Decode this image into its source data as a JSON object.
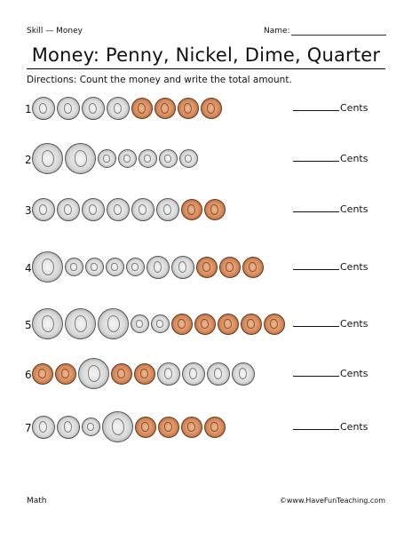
{
  "header": {
    "skill": "Skill — Money",
    "name_label": "Name:"
  },
  "title": "Money: Penny, Nickel, Dime, Quarter",
  "directions": "Directions: Count the money and write the total amount.",
  "answer_suffix": "Cents",
  "rows": [
    {
      "label": "1.",
      "coins": [
        "nickel",
        "nickel",
        "nickel",
        "nickel",
        "penny",
        "penny",
        "penny",
        "penny"
      ]
    },
    {
      "label": "2.",
      "coins": [
        "quarter",
        "quarter",
        "dime",
        "dime",
        "dime",
        "dime",
        "dime"
      ]
    },
    {
      "label": "3.",
      "coins": [
        "nickel",
        "nickel",
        "nickel",
        "nickel",
        "nickel",
        "nickel",
        "penny",
        "penny"
      ]
    },
    {
      "label": "4.",
      "coins": [
        "quarter",
        "dime",
        "dime",
        "dime",
        "dime",
        "nickel",
        "nickel",
        "penny",
        "penny",
        "penny"
      ]
    },
    {
      "label": "5.",
      "coins": [
        "quarter",
        "quarter",
        "quarter",
        "dime",
        "dime",
        "penny",
        "penny",
        "penny",
        "penny",
        "penny"
      ]
    },
    {
      "label": "6.",
      "coins": [
        "penny",
        "penny",
        "quarter",
        "penny",
        "penny",
        "nickel",
        "nickel",
        "nickel",
        "nickel"
      ]
    },
    {
      "label": "7.",
      "coins": [
        "nickel",
        "nickel",
        "dime",
        "quarter",
        "penny",
        "penny",
        "penny",
        "penny"
      ]
    }
  ],
  "footer": {
    "left": "Math",
    "right": "©www.HaveFunTeaching.com"
  },
  "colors": {
    "penny": "#d98b5c",
    "silver": "#d9d9d9"
  }
}
